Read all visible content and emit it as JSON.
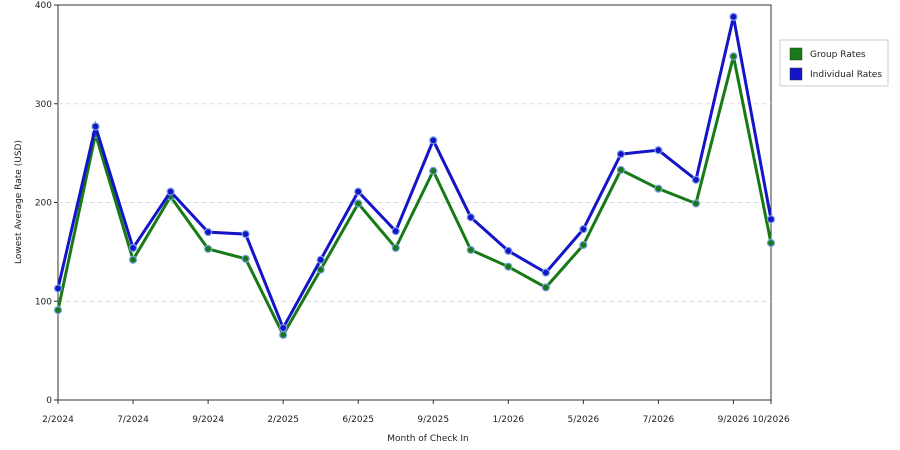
{
  "chart_data": {
    "type": "line",
    "x_label": "Month of Check In",
    "y_label": "Lowest Average Rate (USD)",
    "categories": [
      "2/2024",
      null,
      "7/2024",
      null,
      "9/2024",
      null,
      "2/2025",
      null,
      "6/2025",
      null,
      "9/2025",
      null,
      "1/2026",
      null,
      "5/2026",
      null,
      "7/2026",
      null,
      "9/2026",
      "10/2026"
    ],
    "series": [
      {
        "name": "Group Rates",
        "color": "#177a17",
        "values": [
          91,
          269,
          142,
          206,
          153,
          143,
          66,
          132,
          199,
          154,
          232,
          152,
          135,
          114,
          157,
          233,
          214,
          199,
          348,
          159
        ]
      },
      {
        "name": "Individual Rates",
        "color": "#1414c8",
        "values": [
          113,
          277,
          154,
          211,
          170,
          168,
          73,
          142,
          211,
          171,
          263,
          185,
          151,
          129,
          173,
          249,
          253,
          223,
          388,
          183
        ]
      }
    ],
    "ylim": [
      0,
      400
    ],
    "yticks": [
      0,
      100,
      200,
      300,
      400
    ],
    "grid": true,
    "legend": "right"
  }
}
